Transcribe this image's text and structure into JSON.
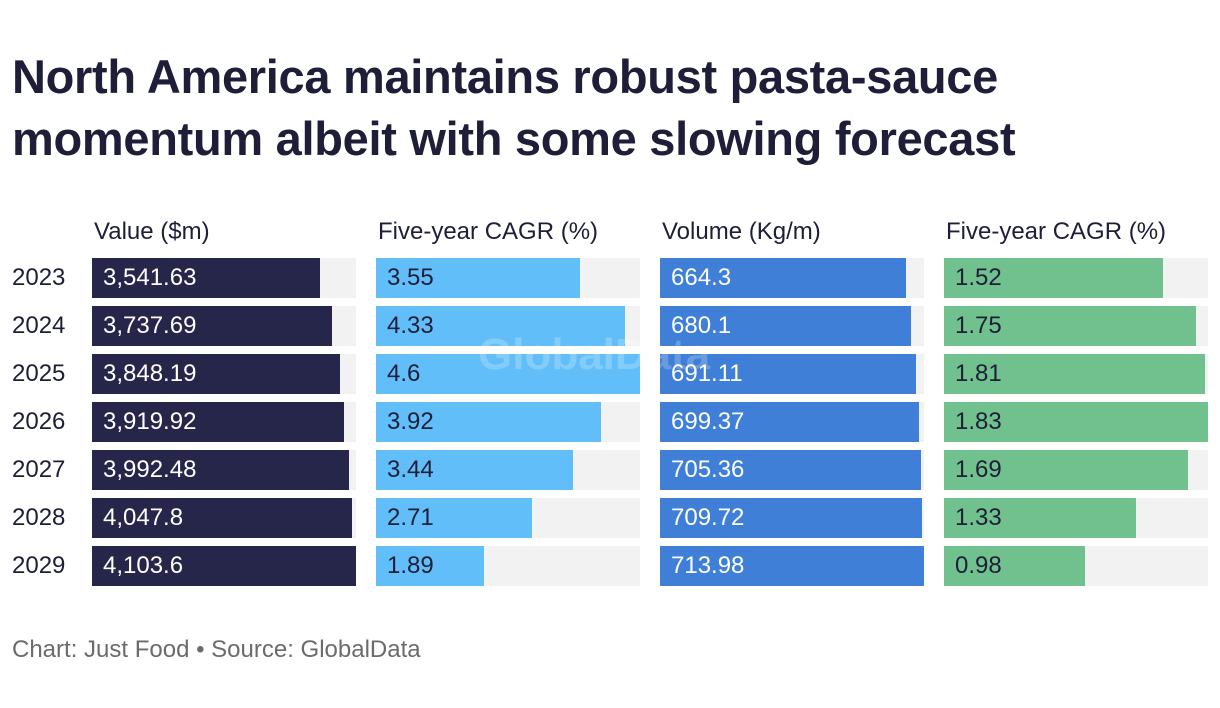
{
  "title": {
    "line1": "North America maintains robust pasta-sauce",
    "line2": "momentum albeit with some slowing forecast"
  },
  "watermark": "GlobalData",
  "footer": {
    "text": "Chart: Just Food • Source: GlobalData"
  },
  "colors": {
    "value": "#25264a",
    "value_cagr": "#62bef8",
    "volume": "#3f7fd7",
    "volume_cagr": "#71c18f",
    "track": "#f2f2f2"
  },
  "chart_data": {
    "type": "table",
    "categories": [
      "2023",
      "2024",
      "2025",
      "2026",
      "2027",
      "2028",
      "2029"
    ],
    "series": [
      {
        "key": "value",
        "name": "Value ($m)",
        "labels": [
          "3,541.63",
          "3,737.69",
          "3,848.19",
          "3,919.92",
          "3,992.48",
          "4,047.8",
          "4,103.6"
        ],
        "values": [
          3541.63,
          3737.69,
          3848.19,
          3919.92,
          3992.48,
          4047.8,
          4103.6
        ],
        "max": 4103.6,
        "label_color": "#ffffff"
      },
      {
        "key": "value_cagr",
        "name": "Five-year CAGR (%)",
        "labels": [
          "3.55",
          "4.33",
          "4.6",
          "3.92",
          "3.44",
          "2.71",
          "1.89"
        ],
        "values": [
          3.55,
          4.33,
          4.6,
          3.92,
          3.44,
          2.71,
          1.89
        ],
        "max": 4.6,
        "label_color": "#1e1e38"
      },
      {
        "key": "volume",
        "name": "Volume (Kg/m)",
        "labels": [
          "664.3",
          "680.1",
          "691.11",
          "699.37",
          "705.36",
          "709.72",
          "713.98"
        ],
        "values": [
          664.3,
          680.1,
          691.11,
          699.37,
          705.36,
          709.72,
          713.98
        ],
        "max": 713.98,
        "label_color": "#ffffff"
      },
      {
        "key": "volume_cagr",
        "name": "Five-year CAGR (%)",
        "labels": [
          "1.52",
          "1.75",
          "1.81",
          "1.83",
          "1.69",
          "1.33",
          "0.98"
        ],
        "values": [
          1.52,
          1.75,
          1.81,
          1.83,
          1.69,
          1.33,
          0.98
        ],
        "max": 1.83,
        "label_color": "#1e1e38"
      }
    ]
  }
}
